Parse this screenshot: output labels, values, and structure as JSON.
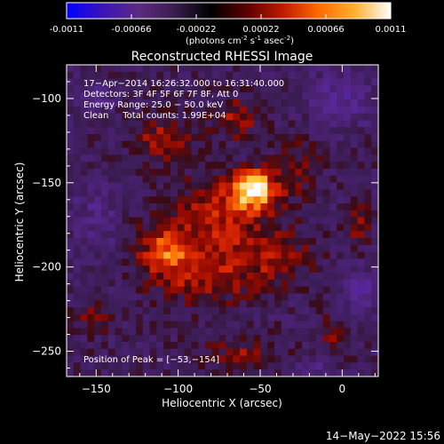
{
  "colorbar": {
    "tick_labels": [
      "-0.0011",
      "-0.00066",
      "-0.00022",
      "0.00022",
      "0.00066",
      "0.0011"
    ],
    "range": [
      -0.0011,
      0.0011
    ],
    "units_main": "(photons cm",
    "units_sup1": "-2",
    "units_s": " s",
    "units_sup2": "-1",
    "units_asec": " asec",
    "units_sup3": "-2",
    "units_end": ")",
    "stops": [
      "#0000ff",
      "#3b14b8",
      "#5c2a80",
      "#3a1c50",
      "#000000",
      "#5a0000",
      "#c01a00",
      "#ff6a00",
      "#ffb030",
      "#ffffff"
    ]
  },
  "chart_data": {
    "type": "heatmap",
    "title": "Reconstructed RHESSI Image",
    "xlabel": "Heliocentric X (arcsec)",
    "ylabel": "Heliocentric Y (arcsec)",
    "xlim": [
      -168,
      22
    ],
    "ylim": [
      -265,
      -80
    ],
    "x_ticks": [
      -150,
      -100,
      -50,
      0
    ],
    "y_ticks": [
      -100,
      -150,
      -200,
      -250
    ],
    "x_tick_labels": [
      "−150",
      "−100",
      "−50",
      "0"
    ],
    "y_tick_labels": [
      "−100",
      "−150",
      "−200",
      "−250"
    ],
    "info_lines": [
      "17−Apr−2014 16:26:32.000 to 16:31:40.000",
      "Detectors: 3F 4F 5F 6F 7F 8F, Att 0",
      "Energy Range: 25.0 − 50.0 keV",
      "Clean     Total counts: 1.99E+04"
    ],
    "peak_label": "Position of Peak = [−53,−154]",
    "peak": [
      -53,
      -154
    ]
  },
  "footer": {
    "timestamp": "14−May−2022 15:56"
  }
}
